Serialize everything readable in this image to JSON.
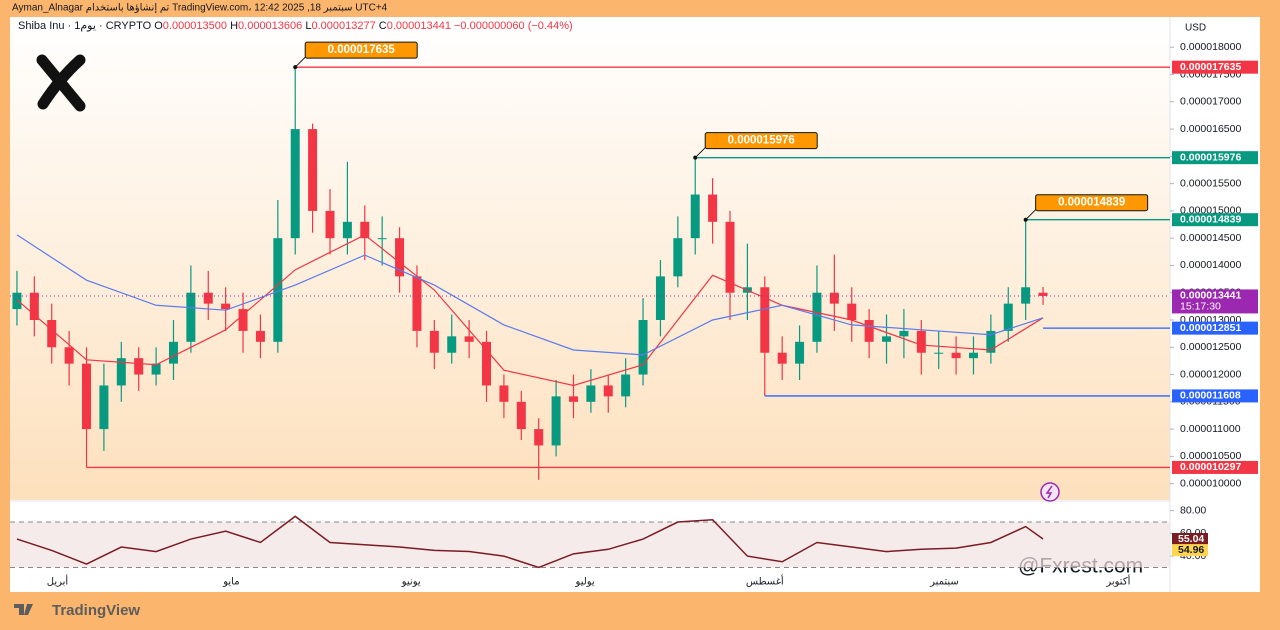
{
  "watermark": "Ayman_Alnagar تم إنشاؤها باستخدام TradingView.com، 12:42 2025 ,18 سبتمبر UTC+4",
  "brand": "TradingView",
  "handle": "@Fxrest.com",
  "chart_data": [
    {
      "type": "candlestick",
      "symbol": "Shiba Inu · 1يوم · CRYPTO",
      "ohlc": [
        {
          "label": "O",
          "value": "0.000013500"
        },
        {
          "label": "H",
          "value": "0.000013606"
        },
        {
          "label": "L",
          "value": "0.000013277"
        },
        {
          "label": "C",
          "value": "0.000013441"
        }
      ],
      "change": "−0.000000060 (−0.44%)",
      "currency": "USD",
      "up_color": "#089981",
      "down_color": "#f23645",
      "open": [
        1.32e-05,
        1.35e-05,
        1.3e-05,
        1.25e-05,
        1.22e-05,
        1.1e-05,
        1.18e-05,
        1.23e-05,
        1.2e-05,
        1.22e-05,
        1.26e-05,
        1.35e-05,
        1.33e-05,
        1.32e-05,
        1.28e-05,
        1.26e-05,
        1.45e-05,
        1.65e-05,
        1.5e-05,
        1.45e-05,
        1.48e-05,
        1.45e-05,
        1.45e-05,
        1.38e-05,
        1.28e-05,
        1.24e-05,
        1.27e-05,
        1.26e-05,
        1.18e-05,
        1.15e-05,
        1.1e-05,
        1.07e-05,
        1.16e-05,
        1.15e-05,
        1.18e-05,
        1.16e-05,
        1.2e-05,
        1.3e-05,
        1.38e-05,
        1.45e-05,
        1.53e-05,
        1.48e-05,
        1.35e-05,
        1.36e-05,
        1.24e-05,
        1.22e-05,
        1.26e-05,
        1.35e-05,
        1.33e-05,
        1.3e-05,
        1.26e-05,
        1.27e-05,
        1.28e-05,
        1.24e-05,
        1.24e-05,
        1.23e-05,
        1.24e-05,
        1.28e-05,
        1.33e-05,
        1.35e-05
      ],
      "high": [
        1.39e-05,
        1.38e-05,
        1.33e-05,
        1.28e-05,
        1.25e-05,
        1.22e-05,
        1.26e-05,
        1.25e-05,
        1.25e-05,
        1.3e-05,
        1.4e-05,
        1.39e-05,
        1.36e-05,
        1.35e-05,
        1.31e-05,
        1.52e-05,
        1.7635e-05,
        1.66e-05,
        1.54e-05,
        1.59e-05,
        1.51e-05,
        1.49e-05,
        1.47e-05,
        1.4e-05,
        1.3e-05,
        1.31e-05,
        1.3e-05,
        1.28e-05,
        1.2e-05,
        1.17e-05,
        1.12e-05,
        1.19e-05,
        1.2e-05,
        1.21e-05,
        1.2e-05,
        1.23e-05,
        1.34e-05,
        1.41e-05,
        1.49e-05,
        1.5976e-05,
        1.56e-05,
        1.5e-05,
        1.44e-05,
        1.38e-05,
        1.27e-05,
        1.29e-05,
        1.4e-05,
        1.42e-05,
        1.36e-05,
        1.32e-05,
        1.31e-05,
        1.32e-05,
        1.3e-05,
        1.28e-05,
        1.27e-05,
        1.27e-05,
        1.31e-05,
        1.36e-05,
        1.4839e-05,
        1.3606e-05
      ],
      "low": [
        1.29e-05,
        1.27e-05,
        1.22e-05,
        1.18e-05,
        1.0297e-05,
        1.06e-05,
        1.15e-05,
        1.17e-05,
        1.18e-05,
        1.19e-05,
        1.24e-05,
        1.3e-05,
        1.28e-05,
        1.24e-05,
        1.23e-05,
        1.24e-05,
        1.42e-05,
        1.46e-05,
        1.42e-05,
        1.42e-05,
        1.41e-05,
        1.4e-05,
        1.35e-05,
        1.25e-05,
        1.21e-05,
        1.22e-05,
        1.23e-05,
        1.15e-05,
        1.12e-05,
        1.08e-05,
        1.007e-05,
        1.05e-05,
        1.12e-05,
        1.13e-05,
        1.13e-05,
        1.14e-05,
        1.18e-05,
        1.27e-05,
        1.36e-05,
        1.42e-05,
        1.44e-05,
        1.3e-05,
        1.3e-05,
        1.1608e-05,
        1.19e-05,
        1.19e-05,
        1.24e-05,
        1.28e-05,
        1.26e-05,
        1.23e-05,
        1.22e-05,
        1.23e-05,
        1.2e-05,
        1.21e-05,
        1.2e-05,
        1.2e-05,
        1.22e-05,
        1.26e-05,
        1.3e-05,
        1.3277e-05
      ],
      "close": [
        1.35e-05,
        1.3e-05,
        1.25e-05,
        1.22e-05,
        1.1e-05,
        1.18e-05,
        1.23e-05,
        1.2e-05,
        1.22e-05,
        1.26e-05,
        1.35e-05,
        1.33e-05,
        1.32e-05,
        1.28e-05,
        1.26e-05,
        1.45e-05,
        1.65e-05,
        1.5e-05,
        1.45e-05,
        1.48e-05,
        1.45e-05,
        1.45e-05,
        1.38e-05,
        1.28e-05,
        1.24e-05,
        1.27e-05,
        1.26e-05,
        1.18e-05,
        1.15e-05,
        1.1e-05,
        1.07e-05,
        1.16e-05,
        1.15e-05,
        1.18e-05,
        1.16e-05,
        1.2e-05,
        1.3e-05,
        1.38e-05,
        1.45e-05,
        1.53e-05,
        1.48e-05,
        1.35e-05,
        1.36e-05,
        1.24e-05,
        1.22e-05,
        1.26e-05,
        1.35e-05,
        1.33e-05,
        1.3e-05,
        1.26e-05,
        1.27e-05,
        1.28e-05,
        1.24e-05,
        1.24e-05,
        1.23e-05,
        1.24e-05,
        1.28e-05,
        1.33e-05,
        1.36e-05,
        1.3441e-05
      ],
      "xlim": [
        -0.4,
        66.3
      ],
      "xticks": [
        {
          "value": 2.33,
          "label": "أبريل"
        },
        {
          "value": 12.33,
          "label": "مايو"
        },
        {
          "value": 22.67,
          "label": "يونيو"
        },
        {
          "value": 32.67,
          "label": "يوليو"
        },
        {
          "value": 43,
          "label": "أغسطس"
        },
        {
          "value": 53.33,
          "label": "سبتمبر"
        },
        {
          "value": 63.33,
          "label": "أكتوبر"
        }
      ],
      "ylim": [
        9.7e-06,
        1.85e-05
      ],
      "yticks": [
        {
          "value": 1e-05,
          "label": "0.000010000"
        },
        {
          "value": 1.05e-05,
          "label": "0.000010500"
        },
        {
          "value": 1.1e-05,
          "label": "0.000011000"
        },
        {
          "value": 1.15e-05,
          "label": "0.000011500"
        },
        {
          "value": 1.2e-05,
          "label": "0.000012000"
        },
        {
          "value": 1.25e-05,
          "label": "0.000012500"
        },
        {
          "value": 1.3e-05,
          "label": "0.000013000"
        },
        {
          "value": 1.35e-05,
          "label": "0.000013500"
        },
        {
          "value": 1.4e-05,
          "label": "0.000014000"
        },
        {
          "value": 1.45e-05,
          "label": "0.000014500"
        },
        {
          "value": 1.5e-05,
          "label": "0.000015000"
        },
        {
          "value": 1.55e-05,
          "label": "0.000015500"
        },
        {
          "value": 1.6e-05,
          "label": "0.000016000"
        },
        {
          "value": 1.65e-05,
          "label": "0.000016500"
        },
        {
          "value": 1.7e-05,
          "label": "0.000017000"
        },
        {
          "value": 1.75e-05,
          "label": "0.000017500"
        },
        {
          "value": 1.8e-05,
          "label": "0.000018000"
        }
      ],
      "lines": [
        {
          "color": "#f23645",
          "x": [
            0,
            4,
            8,
            12,
            16,
            20,
            24,
            28,
            32,
            36,
            40,
            44,
            48,
            52,
            56,
            59
          ],
          "values": [
            1.337e-05,
            1.227e-05,
            1.218e-05,
            1.282e-05,
            1.392e-05,
            1.456e-05,
            1.355e-05,
            1.208e-05,
            1.18e-05,
            1.218e-05,
            1.382e-05,
            1.327e-05,
            1.3e-05,
            1.254e-05,
            1.245e-05,
            1.304e-05
          ]
        },
        {
          "color": "#5b7bea",
          "x": [
            0,
            4,
            8,
            12,
            16,
            20,
            24,
            28,
            32,
            36,
            40,
            44,
            48,
            52,
            56,
            59
          ],
          "values": [
            1.456e-05,
            1.373e-05,
            1.327e-05,
            1.318e-05,
            1.364e-05,
            1.419e-05,
            1.364e-05,
            1.291e-05,
            1.245e-05,
            1.236e-05,
            1.3e-05,
            1.327e-05,
            1.291e-05,
            1.282e-05,
            1.273e-05,
            1.304e-05
          ]
        }
      ],
      "levels": [
        {
          "value": 1.7635e-05,
          "color": "#f23645",
          "callout": true
        },
        {
          "value": 1.5976e-05,
          "color": "#089981",
          "callout": true
        },
        {
          "value": 1.4839e-05,
          "color": "#089981",
          "callout": true
        },
        {
          "value": 1.3441e-05,
          "color": "#9c27b0",
          "current": true
        },
        {
          "value": 1.2851e-05,
          "color": "#2962ff"
        },
        {
          "value": 1.1608e-05,
          "color": "#2962ff"
        },
        {
          "value": 1.0297e-05,
          "color": "#f23645"
        }
      ],
      "countdown": "15:17:30"
    },
    {
      "type": "line",
      "color": "#7a1c22",
      "x": [
        0,
        2,
        4,
        6,
        8,
        10,
        12,
        14,
        16,
        18,
        20,
        22,
        24,
        26,
        28,
        30,
        32,
        34,
        36,
        38,
        40,
        42,
        44,
        46,
        48,
        50,
        52,
        54,
        56,
        58,
        59
      ],
      "values": [
        55,
        45,
        33,
        48,
        44,
        55,
        62,
        52,
        75,
        52,
        50,
        48,
        45,
        44,
        40,
        30,
        42,
        46,
        55,
        70,
        72,
        40,
        35,
        52,
        48,
        44,
        46,
        47,
        52,
        66,
        55.04
      ],
      "ma_last": 54.96,
      "ylim": [
        26,
        85
      ],
      "yticks": [
        {
          "value": 40,
          "label": "40.00"
        },
        {
          "value": 60,
          "label": "60.00"
        },
        {
          "value": 80,
          "label": "80.00"
        }
      ],
      "band": [
        30,
        70
      ]
    }
  ]
}
